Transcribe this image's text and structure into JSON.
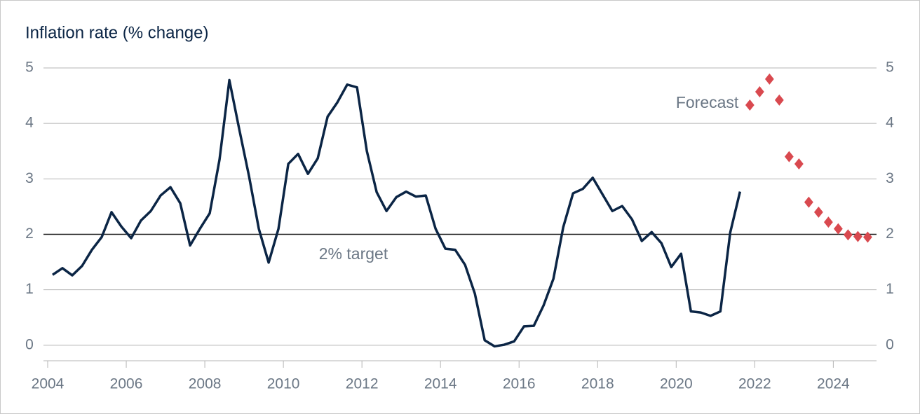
{
  "chart_data": {
    "type": "line",
    "title": "Inflation rate (% change)",
    "x": [
      2004.125,
      2004.375,
      2004.625,
      2004.875,
      2005.125,
      2005.375,
      2005.625,
      2005.875,
      2006.125,
      2006.375,
      2006.625,
      2006.875,
      2007.125,
      2007.375,
      2007.625,
      2007.875,
      2008.125,
      2008.375,
      2008.625,
      2008.875,
      2009.125,
      2009.375,
      2009.625,
      2009.875,
      2010.125,
      2010.375,
      2010.625,
      2010.875,
      2011.125,
      2011.375,
      2011.625,
      2011.875,
      2012.125,
      2012.375,
      2012.625,
      2012.875,
      2013.125,
      2013.375,
      2013.625,
      2013.875,
      2014.125,
      2014.375,
      2014.625,
      2014.875,
      2015.125,
      2015.375,
      2015.625,
      2015.875,
      2016.125,
      2016.375,
      2016.625,
      2016.875,
      2017.125,
      2017.375,
      2017.625,
      2017.875,
      2018.125,
      2018.375,
      2018.625,
      2018.875,
      2019.125,
      2019.375,
      2019.625,
      2019.875,
      2020.125,
      2020.375,
      2020.625,
      2020.875,
      2021.125,
      2021.375,
      2021.625
    ],
    "series": [
      {
        "color": "#0b2545",
        "values": [
          1.27,
          1.39,
          1.26,
          1.43,
          1.72,
          1.95,
          2.4,
          2.14,
          1.93,
          2.25,
          2.42,
          2.7,
          2.85,
          2.56,
          1.8,
          2.1,
          2.38,
          3.35,
          4.78,
          3.9,
          3.05,
          2.1,
          1.49,
          2.1,
          3.27,
          3.45,
          3.09,
          3.37,
          4.12,
          4.38,
          4.7,
          4.65,
          3.5,
          2.76,
          2.42,
          2.67,
          2.77,
          2.68,
          2.7,
          2.1,
          1.74,
          1.72,
          1.45,
          0.93,
          0.09,
          -0.02,
          0.01,
          0.07,
          0.34,
          0.35,
          0.72,
          1.2,
          2.13,
          2.74,
          2.82,
          3.02,
          2.72,
          2.42,
          2.51,
          2.27,
          1.88,
          2.04,
          1.84,
          1.41,
          1.65,
          0.61,
          0.59,
          0.53,
          0.61,
          2.03,
          2.77
        ]
      },
      {
        "name": "Forecast",
        "color": "#d9494f",
        "marker": "diamond",
        "x": [
          2021.875,
          2022.125,
          2022.375,
          2022.625,
          2022.875,
          2023.125,
          2023.375,
          2023.625,
          2023.875,
          2024.125,
          2024.375,
          2024.625,
          2024.875
        ],
        "values": [
          4.33,
          4.57,
          4.8,
          4.42,
          3.4,
          3.27,
          2.58,
          2.4,
          2.22,
          2.1,
          1.99,
          1.96,
          1.95
        ]
      }
    ],
    "target_line": {
      "value": 2,
      "label": "2% target"
    },
    "xlim": [
      2003.5,
      2025.1
    ],
    "xticks": [
      2004,
      2006,
      2008,
      2010,
      2012,
      2014,
      2016,
      2018,
      2020,
      2022,
      2024
    ],
    "ylim": [
      -0.28,
      5
    ],
    "yticks": [
      0,
      1,
      2,
      3,
      4,
      5
    ],
    "mirror_y_axis": true,
    "grid": true
  }
}
